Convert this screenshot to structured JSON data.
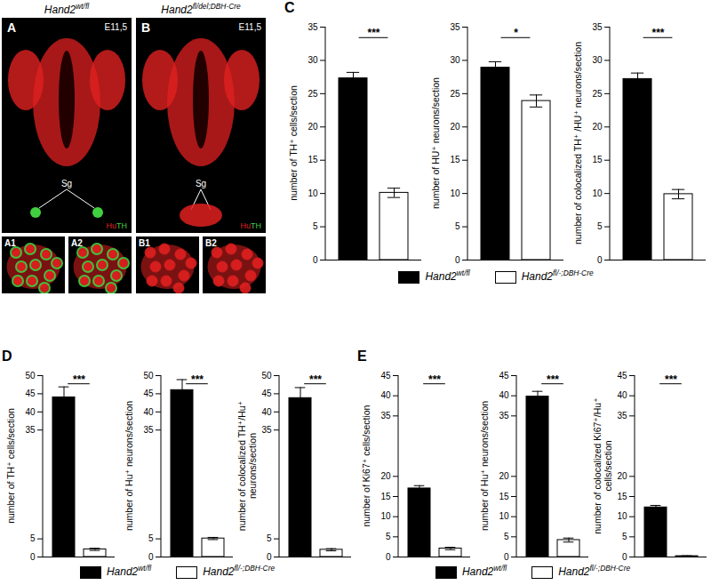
{
  "micrographs": [
    {
      "label": "A",
      "title": "Hand2wt/fl",
      "stage": "E11,5",
      "annotation": "Sg",
      "stain": [
        {
          "name": "Hu",
          "color": "#e02020"
        },
        {
          "name": "TH",
          "color": "#40d040"
        }
      ],
      "insets": [
        "A1",
        "A2"
      ]
    },
    {
      "label": "B",
      "title": "Hand2fl/del;DBH-Cre",
      "stage": "E11,5",
      "annotation": "Sg",
      "stain": [
        {
          "name": "Hu",
          "color": "#e02020"
        },
        {
          "name": "TH",
          "color": "#40d040"
        }
      ],
      "insets": [
        "B1",
        "B2"
      ]
    }
  ],
  "chart_data": [
    {
      "type": "bar",
      "title": "C",
      "ylabel": "number of TH⁺ cells/section",
      "ylim": [
        0,
        35
      ],
      "yticks": [
        0,
        5,
        10,
        15,
        20,
        25,
        30,
        35
      ],
      "tick_labels": "y",
      "annotations": [
        "***"
      ],
      "series": [
        {
          "name": "Hand2wt/fl",
          "color": "#000000",
          "values": [
            27.3
          ],
          "errors": [
            0.9
          ]
        },
        {
          "name": "Hand2fl/-;DBH-Cre",
          "color": "#ffffff",
          "values": [
            10.1
          ],
          "errors": [
            0.7
          ]
        }
      ]
    },
    {
      "type": "bar",
      "ylabel": "number of HU⁺ neurons/section",
      "ylim": [
        0,
        35
      ],
      "yticks": [
        0,
        5,
        10,
        15,
        20,
        25,
        30,
        35
      ],
      "tick_labels": "y",
      "annotations": [
        "*"
      ],
      "legend": "bottom",
      "series": [
        {
          "name": "Hand2wt/fl",
          "color": "#000000",
          "values": [
            28.9
          ],
          "errors": [
            0.9
          ]
        },
        {
          "name": "Hand2fl/-;DBH-Cre",
          "color": "#ffffff",
          "values": [
            23.9
          ],
          "errors": [
            0.9
          ]
        }
      ]
    },
    {
      "type": "bar",
      "ylabel": "number of colocalized TH⁺ /HU⁺ neurons/section",
      "ylim": [
        0,
        35
      ],
      "yticks": [
        0,
        5,
        10,
        15,
        20,
        25,
        30,
        35
      ],
      "tick_labels": "y",
      "annotations": [
        "***"
      ],
      "series": [
        {
          "name": "Hand2wt/fl",
          "color": "#000000",
          "values": [
            27.2
          ],
          "errors": [
            0.9
          ]
        },
        {
          "name": "Hand2fl/-;DBH-Cre",
          "color": "#ffffff",
          "values": [
            9.9
          ],
          "errors": [
            0.7
          ]
        }
      ]
    },
    {
      "type": "bar",
      "title": "D",
      "ylabel": "number of TH⁺ cells/section",
      "ylim": [
        0,
        50
      ],
      "yticks": [
        0,
        5,
        35,
        40,
        45,
        50
      ],
      "tick_labels": "y",
      "annotations": [
        "***"
      ],
      "series": [
        {
          "name": "Hand2wt/fl",
          "color": "#000000",
          "values": [
            44.0
          ],
          "errors": [
            2.9
          ]
        },
        {
          "name": "Hand2fl/-;DBH-Cre",
          "color": "#ffffff",
          "values": [
            2.1
          ],
          "errors": [
            0.3
          ]
        }
      ]
    },
    {
      "type": "bar",
      "ylabel": "number of Hu⁺ neurons/section",
      "ylim": [
        0,
        50
      ],
      "yticks": [
        0,
        5,
        35,
        40,
        45,
        50
      ],
      "tick_labels": "y",
      "annotations": [
        "***"
      ],
      "legend": "bottom",
      "series": [
        {
          "name": "Hand2wt/fl",
          "color": "#000000",
          "values": [
            46.0
          ],
          "errors": [
            2.9
          ]
        },
        {
          "name": "Hand2fl/-;DBH-Cre",
          "color": "#ffffff",
          "values": [
            5.1
          ],
          "errors": [
            0.3
          ]
        }
      ]
    },
    {
      "type": "bar",
      "ylabel": "number of colocalized TH⁺/Hu⁺ neurons/section",
      "ylim": [
        0,
        50
      ],
      "yticks": [
        0,
        5,
        35,
        40,
        45,
        50
      ],
      "tick_labels": "y",
      "annotations": [
        "***"
      ],
      "series": [
        {
          "name": "Hand2wt/fl",
          "color": "#000000",
          "values": [
            43.8
          ],
          "errors": [
            2.9
          ]
        },
        {
          "name": "Hand2fl/-;DBH-Cre",
          "color": "#ffffff",
          "values": [
            2.0
          ],
          "errors": [
            0.3
          ]
        }
      ]
    },
    {
      "type": "bar",
      "title": "E",
      "ylabel": "number of Ki67⁺ cells/section",
      "ylim": [
        0,
        45
      ],
      "yticks": [
        0,
        5,
        10,
        15,
        20,
        35,
        40,
        45
      ],
      "tick_labels": "y",
      "annotations": [
        "***"
      ],
      "series": [
        {
          "name": "Hand2wt/fl",
          "color": "#000000",
          "values": [
            17.0
          ],
          "errors": [
            0.7
          ]
        },
        {
          "name": "Hand2fl/-;DBH-Cre",
          "color": "#ffffff",
          "values": [
            2.1
          ],
          "errors": [
            0.3
          ]
        }
      ]
    },
    {
      "type": "bar",
      "ylabel": "number of Hu⁺ neurons/section",
      "ylim": [
        0,
        45
      ],
      "yticks": [
        0,
        5,
        10,
        15,
        20,
        35,
        40,
        45
      ],
      "tick_labels": "y",
      "annotations": [
        "***"
      ],
      "legend": "bottom",
      "series": [
        {
          "name": "Hand2wt/fl",
          "color": "#000000",
          "values": [
            39.8
          ],
          "errors": [
            1.3
          ]
        },
        {
          "name": "Hand2fl/-;DBH-Cre",
          "color": "#ffffff",
          "values": [
            4.2
          ],
          "errors": [
            0.5
          ]
        }
      ]
    },
    {
      "type": "bar",
      "ylabel": "number of colocalized Ki67⁺/Hu⁺ cells/section",
      "ylim": [
        0,
        45
      ],
      "yticks": [
        0,
        5,
        10,
        15,
        20,
        35,
        40,
        45
      ],
      "tick_labels": "y",
      "annotations": [
        "***"
      ],
      "series": [
        {
          "name": "Hand2wt/fl",
          "color": "#000000",
          "values": [
            12.3
          ],
          "errors": [
            0.5
          ]
        },
        {
          "name": "Hand2fl/-;DBH-Cre",
          "color": "#ffffff",
          "values": [
            0.2
          ],
          "errors": [
            0.1
          ]
        }
      ]
    }
  ]
}
